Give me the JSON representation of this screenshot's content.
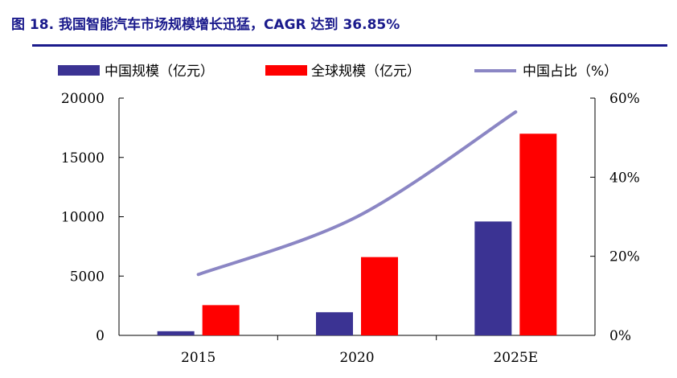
{
  "header": {
    "title": "图 18. 我国智能汽车市场规模增长迅猛，CAGR 达到 36.85%"
  },
  "chart_data": {
    "type": "bar",
    "title": "图 18. 我国智能汽车市场规模增长迅猛，CAGR 达到 36.85%",
    "categories": [
      "2015",
      "2020",
      "2025E"
    ],
    "series": [
      {
        "name": "中国规模（亿元）",
        "type": "bar",
        "axis": "left",
        "color": "#3b3393",
        "values": [
          350,
          1950,
          9600
        ]
      },
      {
        "name": "全球规模（亿元）",
        "type": "bar",
        "axis": "left",
        "color": "#ff0000",
        "values": [
          2550,
          6600,
          17000
        ]
      },
      {
        "name": "中国占比（%）",
        "type": "line",
        "axis": "right",
        "color": "#8b86c4",
        "values": [
          15.4,
          30.0,
          56.5
        ]
      }
    ],
    "left_axis": {
      "min": 0,
      "max": 20000,
      "ticks": [
        0,
        5000,
        10000,
        15000,
        20000
      ],
      "tick_labels": [
        "0",
        "5000",
        "10000",
        "15000",
        "20000"
      ]
    },
    "right_axis": {
      "min": 0,
      "max": 60,
      "ticks": [
        0,
        20,
        40,
        60
      ],
      "tick_labels": [
        "0%",
        "20%",
        "40%",
        "60%"
      ]
    },
    "legend": {
      "placement": "top",
      "items": [
        "中国规模（亿元）",
        "全球规模（亿元）",
        "中国占比（%）"
      ]
    },
    "grid": false
  }
}
